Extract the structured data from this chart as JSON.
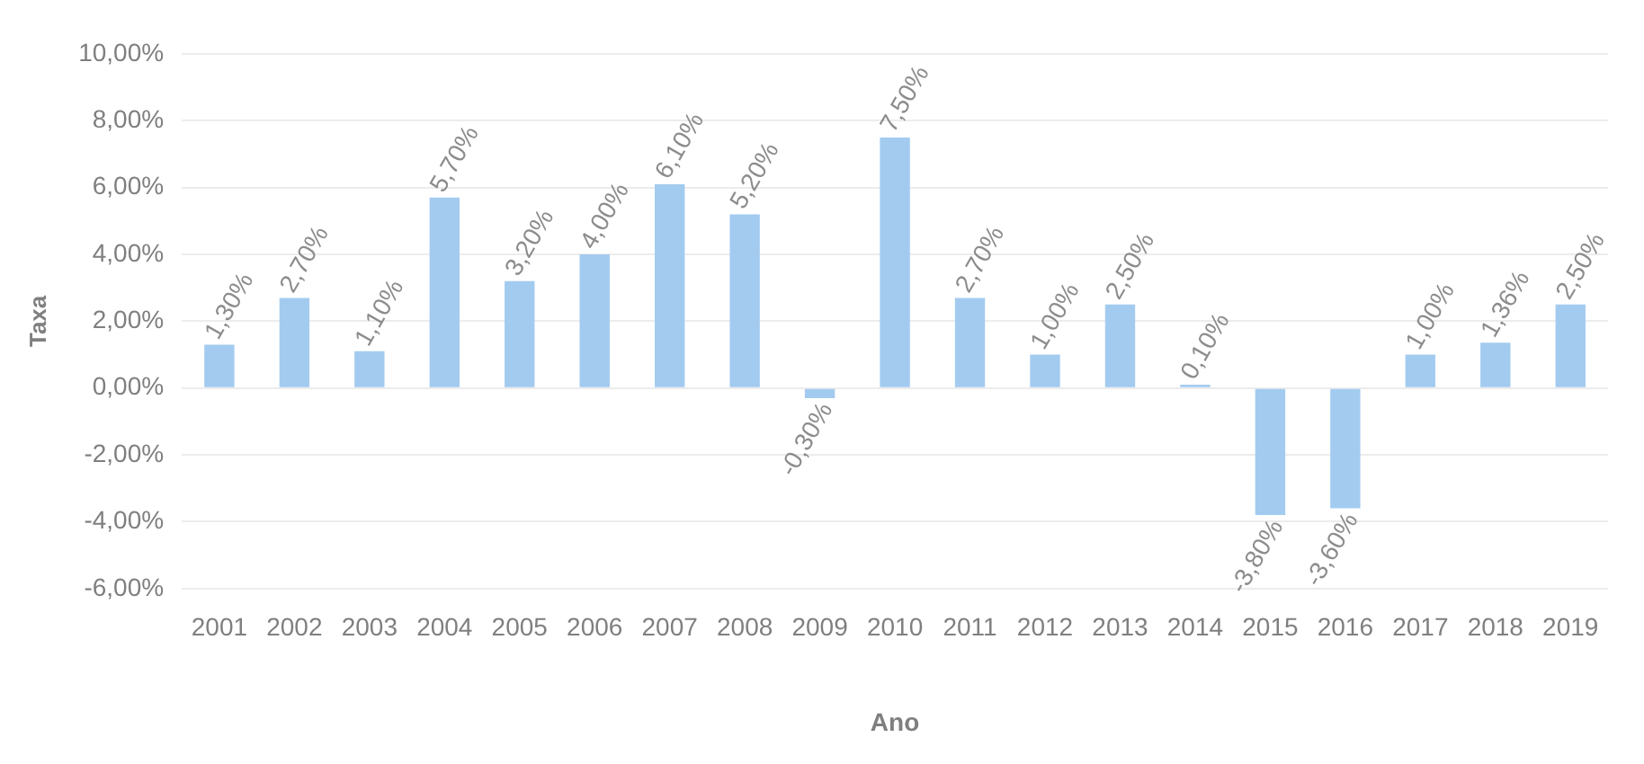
{
  "chart_data": {
    "type": "bar",
    "xlabel": "Ano",
    "ylabel": "Taxa",
    "categories": [
      "2001",
      "2002",
      "2003",
      "2004",
      "2005",
      "2006",
      "2007",
      "2008",
      "2009",
      "2010",
      "2011",
      "2012",
      "2013",
      "2014",
      "2015",
      "2016",
      "2017",
      "2018",
      "2019"
    ],
    "values": [
      1.3,
      2.7,
      1.1,
      5.7,
      3.2,
      4.0,
      6.1,
      5.2,
      -0.3,
      7.5,
      2.7,
      1.0,
      2.5,
      0.1,
      -3.8,
      -3.6,
      1.0,
      1.36,
      2.5
    ],
    "value_labels": [
      "1,30%",
      "2,70%",
      "1,10%",
      "5,70%",
      "3,20%",
      "4,00%",
      "6,10%",
      "5,20%",
      "-0,30%",
      "7,50%",
      "2,70%",
      "1,00%",
      "2,50%",
      "0,10%",
      "-3,80%",
      "-3,60%",
      "1,00%",
      "1,36%",
      "2,50%"
    ],
    "color": "#a3cbf0",
    "ylim": [
      -6,
      10
    ],
    "yticks": [
      {
        "value": -6,
        "label": "-6,00%"
      },
      {
        "value": -4,
        "label": "-4,00%"
      },
      {
        "value": -2,
        "label": "-2,00%"
      },
      {
        "value": 0,
        "label": "0,00%"
      },
      {
        "value": 2,
        "label": "2,00%"
      },
      {
        "value": 4,
        "label": "4,00%"
      },
      {
        "value": 6,
        "label": "6,00%"
      },
      {
        "value": 8,
        "label": "8,00%"
      },
      {
        "value": 10,
        "label": "10,00%"
      }
    ],
    "grid": "y",
    "legend": false
  }
}
